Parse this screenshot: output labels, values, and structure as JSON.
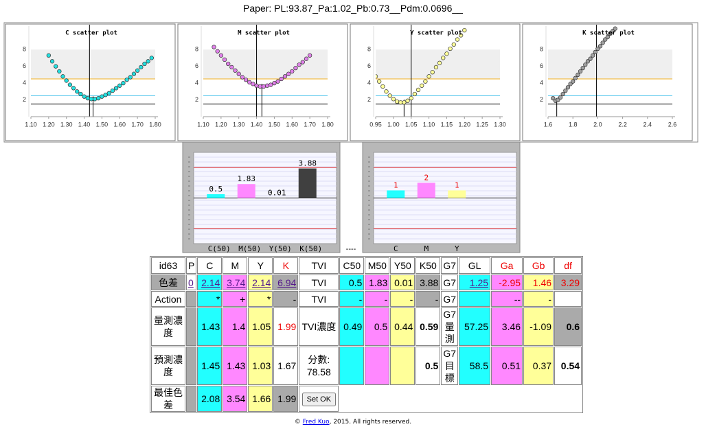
{
  "header": {
    "title": "Paper: PL:93.87_Pa:1.02_Pb:0.73__Pdm:0.0696__"
  },
  "chart_data": [
    {
      "type": "scatter",
      "title": "C scatter plot",
      "color": "#22e0e0",
      "x": [
        1.2,
        1.22,
        1.24,
        1.26,
        1.28,
        1.3,
        1.32,
        1.34,
        1.36,
        1.38,
        1.4,
        1.42,
        1.44,
        1.46,
        1.48,
        1.5,
        1.52,
        1.54,
        1.56,
        1.58,
        1.6,
        1.62,
        1.64,
        1.66,
        1.68,
        1.7,
        1.72,
        1.74,
        1.76,
        1.78
      ],
      "values": [
        7.3,
        6.6,
        6.0,
        5.4,
        4.8,
        4.3,
        3.8,
        3.4,
        3.0,
        2.7,
        2.4,
        2.2,
        2.1,
        2.1,
        2.2,
        2.4,
        2.6,
        2.8,
        3.1,
        3.4,
        3.7,
        4.0,
        4.4,
        4.7,
        5.1,
        5.5,
        5.9,
        6.3,
        6.6,
        7.0
      ],
      "xlim": [
        1.1,
        1.8
      ],
      "xticks": [
        {
          "value": 1.1,
          "label": "1.10"
        },
        {
          "value": 1.2,
          "label": "1.20"
        },
        {
          "value": 1.3,
          "label": "1.30"
        },
        {
          "value": 1.4,
          "label": "1.40"
        },
        {
          "value": 1.5,
          "label": "1.50"
        },
        {
          "value": 1.6,
          "label": "1.60"
        },
        {
          "value": 1.7,
          "label": "1.70"
        },
        {
          "value": 1.8,
          "label": "1.80"
        }
      ],
      "ylim": [
        0,
        10.8
      ],
      "yticks": [
        2,
        4,
        6,
        8
      ],
      "band": [
        4.5,
        8
      ],
      "band_color": "#efefef",
      "hlines": [
        {
          "value": 1.5,
          "color": "#000000"
        },
        {
          "value": 2.5,
          "color": "#66ccee"
        },
        {
          "value": 4.5,
          "color": "#f0b020"
        }
      ],
      "measured": 1.43,
      "predicted": 1.45
    },
    {
      "type": "scatter",
      "title": "M scatter plot",
      "color": "#e080ea",
      "x": [
        1.16,
        1.18,
        1.2,
        1.22,
        1.24,
        1.26,
        1.28,
        1.3,
        1.32,
        1.34,
        1.36,
        1.38,
        1.4,
        1.42,
        1.44,
        1.46,
        1.48,
        1.5,
        1.52,
        1.54,
        1.56,
        1.58,
        1.6,
        1.62,
        1.64,
        1.66,
        1.68,
        1.7
      ],
      "values": [
        8.3,
        7.8,
        7.3,
        6.8,
        6.3,
        5.9,
        5.5,
        5.1,
        4.7,
        4.4,
        4.1,
        3.9,
        3.7,
        3.6,
        3.6,
        3.7,
        3.8,
        4.0,
        4.2,
        4.5,
        4.8,
        5.1,
        5.4,
        5.8,
        6.2,
        6.5,
        6.9,
        7.3
      ],
      "xlim": [
        1.1,
        1.8
      ],
      "xticks": [
        {
          "value": 1.1,
          "label": "1.10"
        },
        {
          "value": 1.2,
          "label": "1.20"
        },
        {
          "value": 1.3,
          "label": "1.30"
        },
        {
          "value": 1.4,
          "label": "1.40"
        },
        {
          "value": 1.5,
          "label": "1.50"
        },
        {
          "value": 1.6,
          "label": "1.60"
        },
        {
          "value": 1.7,
          "label": "1.70"
        },
        {
          "value": 1.8,
          "label": "1.80"
        }
      ],
      "ylim": [
        0,
        10.8
      ],
      "yticks": [
        2,
        4,
        6,
        8
      ],
      "band": [
        4.5,
        8
      ],
      "band_color": "#efefef",
      "hlines": [
        {
          "value": 1.5,
          "color": "#000000"
        },
        {
          "value": 2.5,
          "color": "#66ccee"
        },
        {
          "value": 4.5,
          "color": "#f0b020"
        }
      ],
      "measured": 1.4,
      "predicted": 1.43
    },
    {
      "type": "scatter",
      "title": "Y scatter plot",
      "color": "#ffff99",
      "x": [
        0.95,
        0.96,
        0.97,
        0.98,
        0.99,
        1.0,
        1.01,
        1.02,
        1.03,
        1.04,
        1.05,
        1.06,
        1.07,
        1.08,
        1.09,
        1.1,
        1.11,
        1.12,
        1.13,
        1.14,
        1.15,
        1.16,
        1.17,
        1.18,
        1.19,
        1.2
      ],
      "values": [
        4.8,
        4.2,
        3.6,
        3.0,
        2.5,
        2.1,
        1.8,
        1.7,
        1.7,
        1.9,
        2.2,
        2.7,
        3.2,
        3.7,
        4.2,
        4.8,
        5.3,
        5.9,
        6.4,
        7.0,
        7.5,
        8.1,
        8.6,
        9.2,
        9.7,
        10.3
      ],
      "xlim": [
        0.95,
        1.3
      ],
      "xticks": [
        0.95,
        {
          "value": 1.0,
          "label": "1.00"
        },
        1.05,
        {
          "value": 1.1,
          "label": "1.10"
        },
        1.15,
        {
          "value": 1.2,
          "label": "1.20"
        },
        1.25,
        {
          "value": 1.3,
          "label": "1.30"
        }
      ],
      "ylim": [
        0,
        10.8
      ],
      "yticks": [
        2,
        4,
        6,
        8
      ],
      "band": [
        4.5,
        8
      ],
      "band_color": "#efefef",
      "hlines": [
        {
          "value": 1.5,
          "color": "#000000"
        },
        {
          "value": 2.5,
          "color": "#66ccee"
        },
        {
          "value": 4.5,
          "color": "#f0b020"
        }
      ],
      "measured": 1.05,
      "predicted": 1.03
    },
    {
      "type": "scatter",
      "title": "K scatter plot",
      "color": "#a0a0a0",
      "x": [
        1.64,
        1.66,
        1.68,
        1.7,
        1.72,
        1.74,
        1.76,
        1.78,
        1.8,
        1.82,
        1.84,
        1.86,
        1.88,
        1.9,
        1.92,
        1.94,
        1.96,
        1.98,
        2.0,
        2.02,
        2.04,
        2.06,
        2.08,
        2.1,
        2.12,
        2.14
      ],
      "values": [
        2.2,
        1.9,
        2.0,
        2.3,
        2.7,
        3.1,
        3.5,
        3.9,
        4.2,
        4.6,
        5.0,
        5.4,
        5.8,
        6.2,
        6.6,
        6.9,
        7.3,
        7.7,
        8.1,
        8.4,
        8.8,
        9.2,
        9.5,
        9.9,
        10.2,
        10.5
      ],
      "xlim": [
        1.6,
        2.6
      ],
      "xticks": [
        1.6,
        1.8,
        {
          "value": 2.0,
          "label": "2.0"
        },
        2.2,
        2.4,
        2.6
      ],
      "ylim": [
        0,
        10.8
      ],
      "yticks": [
        2,
        4,
        6,
        8
      ],
      "band": [
        4.5,
        8
      ],
      "band_color": "#efefef",
      "hlines": [
        {
          "value": 1.5,
          "color": "#000000"
        },
        {
          "value": 2.5,
          "color": "#66ccee"
        },
        {
          "value": 4.5,
          "color": "#f0b020"
        }
      ],
      "measured": 1.99,
      "predicted": 1.67
    },
    {
      "type": "bar",
      "categories": [
        "C(50)",
        "M(50)",
        "Y(50)",
        "K(50)"
      ],
      "values": [
        0.5,
        1.83,
        0.01,
        3.88
      ],
      "colors": [
        "#22ffff",
        "#ff88ff",
        "#ffff99",
        "#404040"
      ],
      "label_color": "#000000",
      "ylim": [
        -6,
        6
      ],
      "hlines": [
        {
          "value": 4,
          "color": "#dd2222"
        },
        {
          "value": -4,
          "color": "#dd2222"
        }
      ]
    },
    {
      "type": "bar",
      "categories": [
        "C",
        "M",
        "Y"
      ],
      "values": [
        1,
        2,
        1
      ],
      "colors": [
        "#22ffff",
        "#ff88ff",
        "#ffff99"
      ],
      "label_color": "#ee0000",
      "ylim": [
        -6,
        6
      ],
      "hlines": [
        {
          "value": 4,
          "color": "#dd2222"
        },
        {
          "value": -4,
          "color": "#dd2222"
        }
      ]
    }
  ],
  "separator": "----",
  "table": {
    "rows": [
      [
        "id63",
        "P",
        "C",
        "M",
        "Y",
        "K",
        "TVI",
        "C50",
        "M50",
        "Y50",
        "K50",
        "G7",
        "GL",
        "Ga",
        "Gb",
        "df"
      ],
      [
        "色差",
        "0",
        "2.14",
        "3.74",
        "2.14",
        "6.94",
        "TVI",
        "0.5",
        "1.83",
        "0.01",
        "3.88",
        "G7",
        "1.25",
        "-2.95",
        "1.46",
        "3.29"
      ],
      [
        "Action",
        null,
        "*",
        "+",
        "*",
        "-",
        "TVI",
        "-",
        "-",
        "-",
        "-",
        "G7",
        null,
        "--",
        "-",
        null
      ],
      [
        "量測濃度",
        null,
        "1.43",
        "1.4",
        "1.05",
        "1.99",
        "TVI濃度",
        "0.49",
        "0.5",
        "0.44",
        "0.59",
        "G7量測",
        "57.25",
        "3.46",
        "-1.09",
        "0.6"
      ],
      [
        "預測濃度",
        null,
        "1.45",
        "1.43",
        "1.03",
        "1.67",
        [
          "分數:",
          "78.58"
        ],
        null,
        null,
        null,
        "0.5",
        "G7目標",
        "58.5",
        "0.51",
        "0.37",
        "0.54"
      ],
      [
        "最佳色差",
        null,
        "2.08",
        "3.54",
        "1.66",
        "1.99",
        "Set OK"
      ]
    ]
  },
  "footer": {
    "prefix": "©",
    "link": "Fred Kuo",
    "suffix": ", 2015. All rights reserved."
  }
}
